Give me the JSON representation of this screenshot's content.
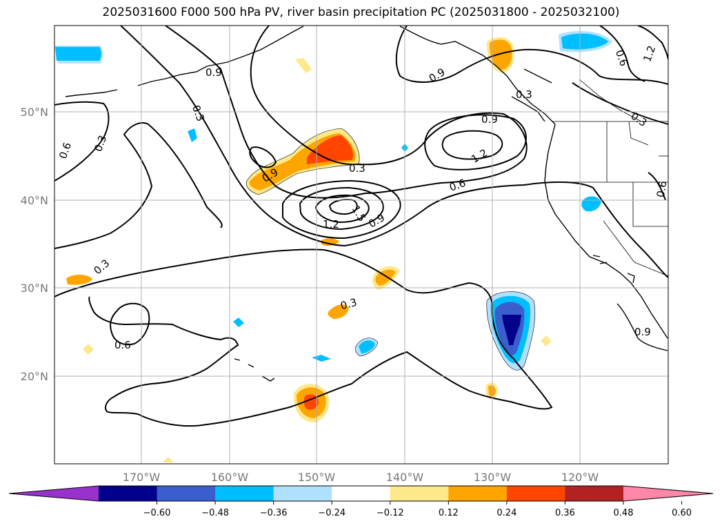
{
  "title": "2025031600 F000 500 hPa PV, river basin precipitation PC (2025031800 - 2025032100)",
  "latitude_labels": [
    "50°N",
    "40°N",
    "30°N",
    "20°N"
  ],
  "longitude_labels": [
    "170°W",
    "160°W",
    "150°W",
    "140°W",
    "130°W",
    "120°W"
  ],
  "contour_labels": [
    "0.9",
    "0.3",
    "0.6",
    "0.3",
    "0.9",
    "0.3",
    "0.9",
    "1.2",
    "0.9",
    "0.3",
    "0.6",
    "1.2",
    "1.5",
    "0.9",
    "0.3",
    "0.6",
    "0.3",
    "0.6",
    "1.2",
    "0.6",
    "0.3",
    "0.9"
  ],
  "colorbar": {
    "ticks": [
      "−0.60",
      "−0.48",
      "−0.36",
      "−0.24",
      "−0.12",
      "0.12",
      "0.24",
      "0.36",
      "0.48",
      "0.60"
    ],
    "colors": [
      "#9932cc",
      "#00008b",
      "#3a5fcd",
      "#00bfff",
      "#b0e2ff",
      "#ffffff",
      "#fde88a",
      "#ffa500",
      "#ff4500",
      "#b22222",
      "#ff88aa"
    ]
  }
}
